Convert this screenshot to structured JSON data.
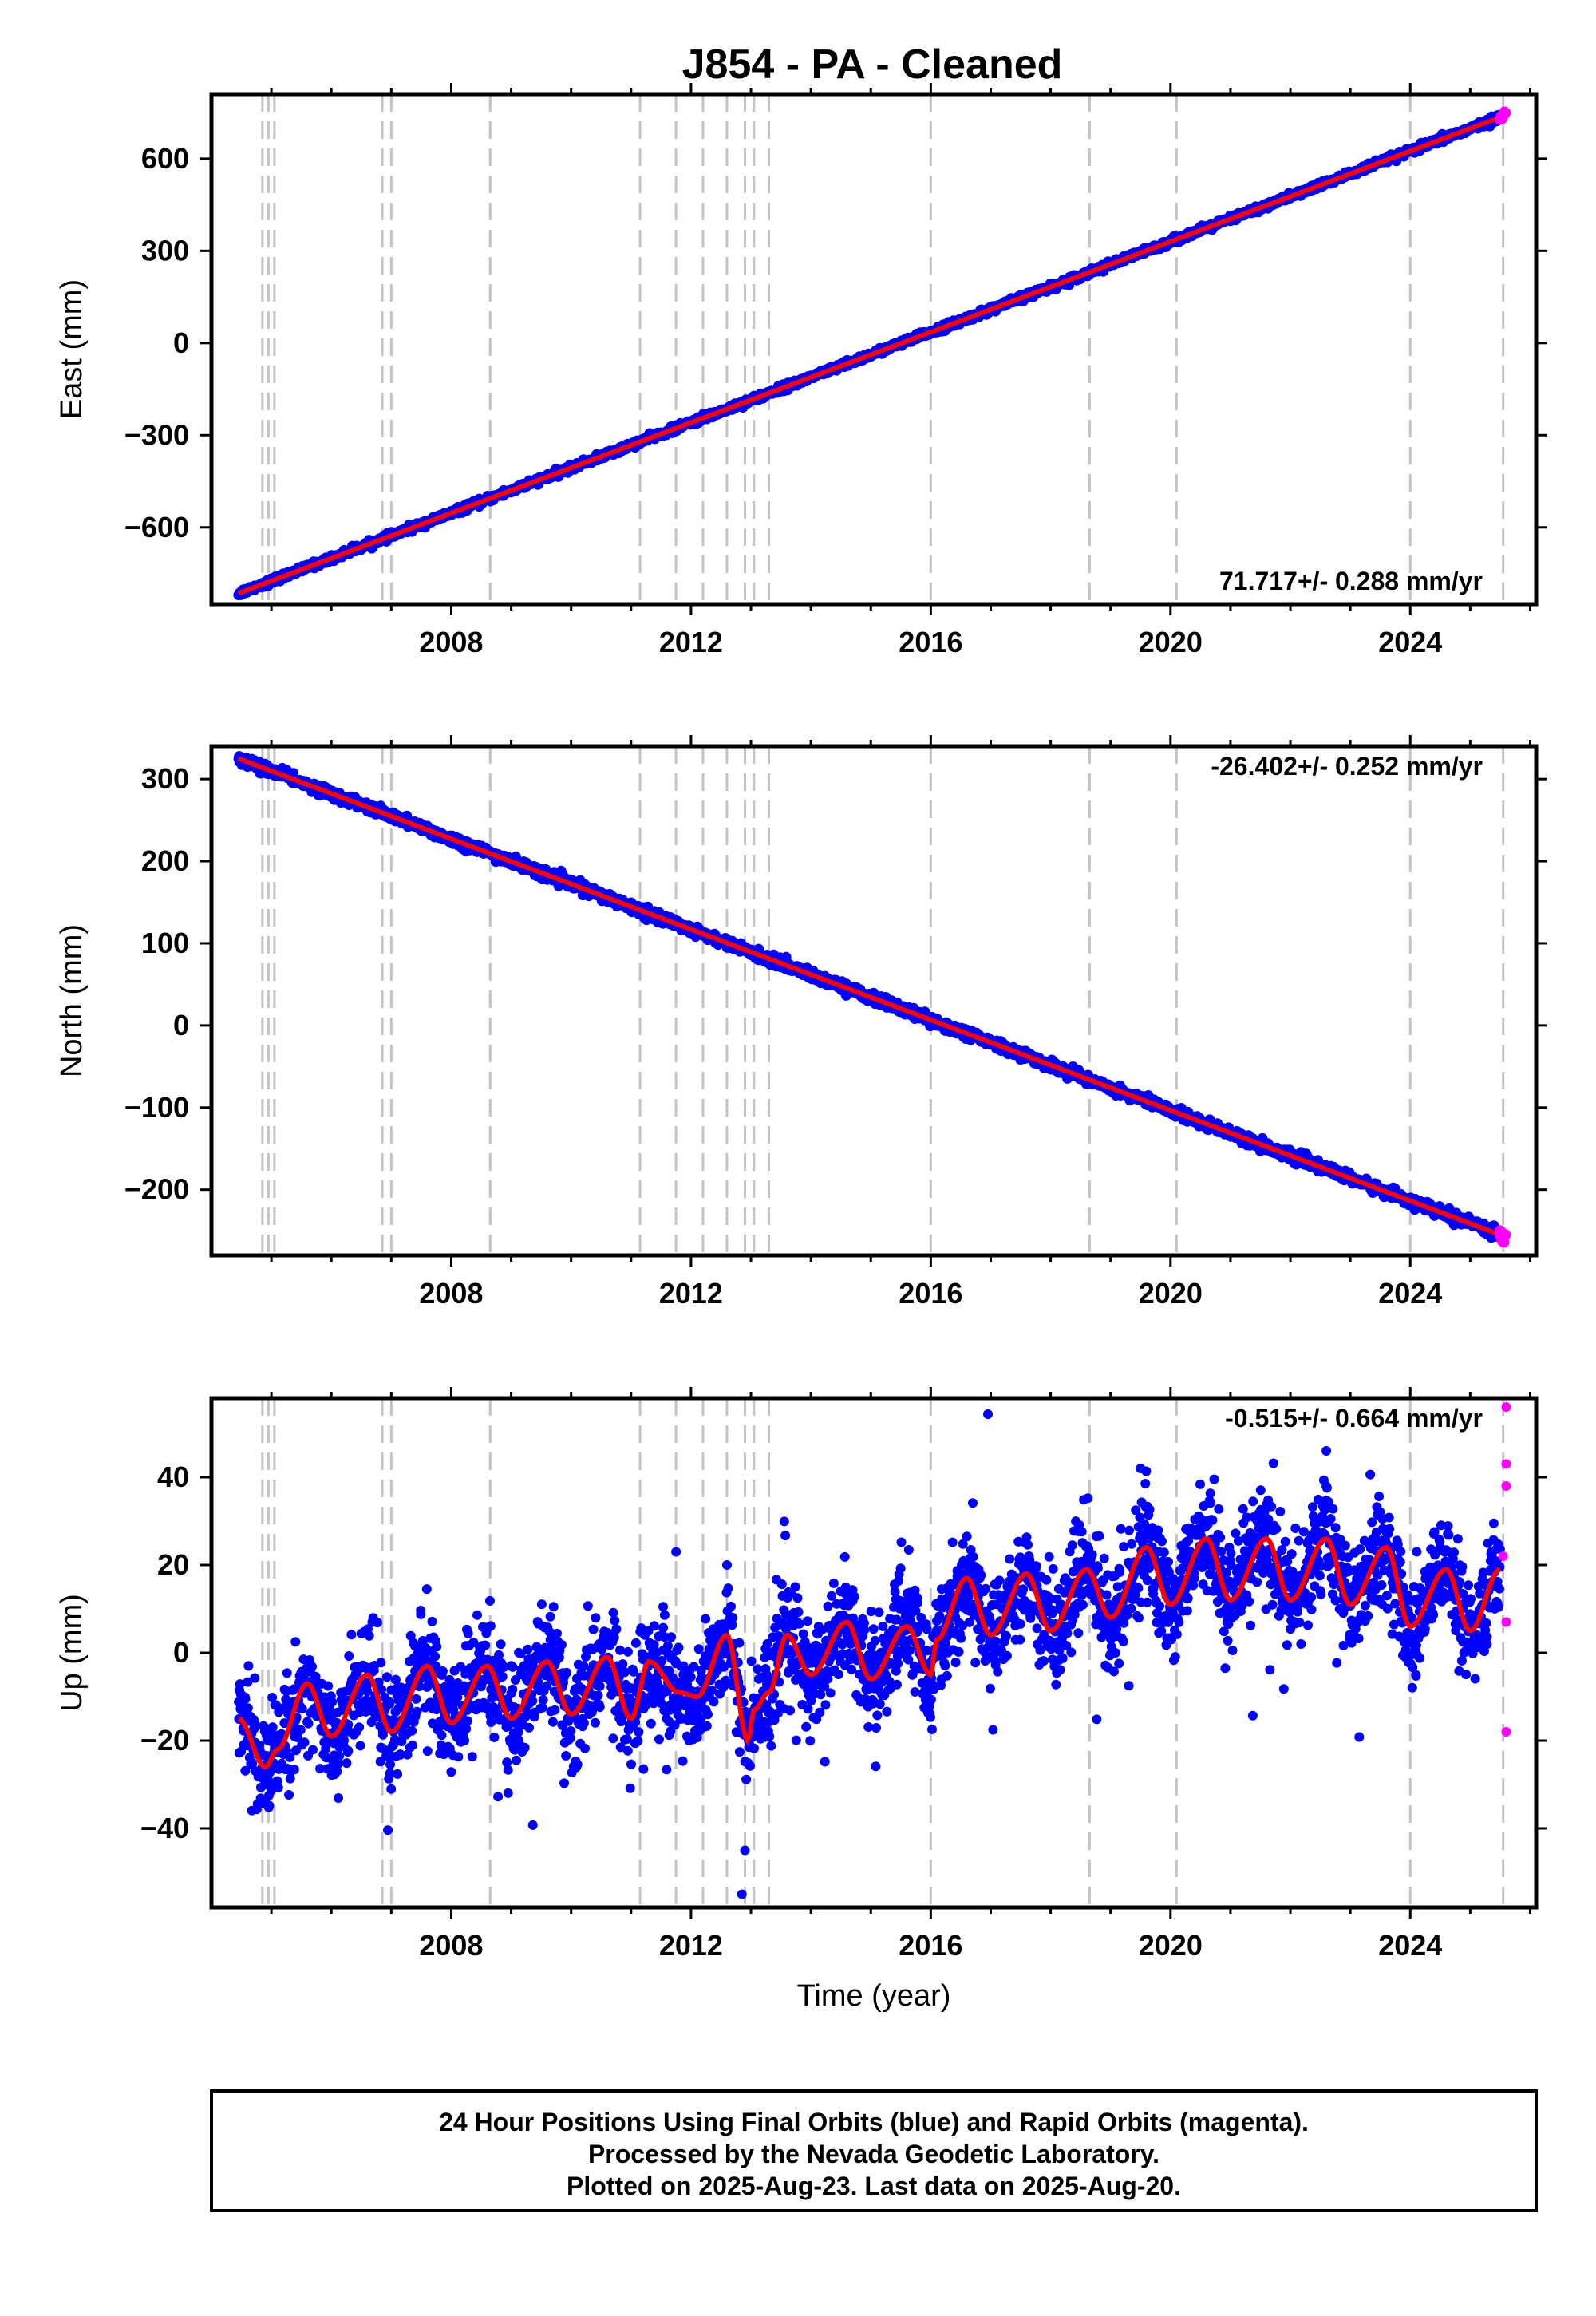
{
  "chart_data": {
    "type": "scatter",
    "title": "J854  - PA - Cleaned",
    "xlabel": "Time (year)",
    "x_range": [
      2004.0,
      2026.1
    ],
    "x_ticks": [
      2008,
      2012,
      2016,
      2020,
      2024
    ],
    "event_lines": [
      2004.85,
      2004.95,
      2005.05,
      2006.85,
      2007.0,
      2008.65,
      2011.15,
      2011.75,
      2012.2,
      2012.6,
      2012.9,
      2013.05,
      2013.3,
      2016.0,
      2018.65,
      2020.1,
      2024.0,
      2025.55
    ],
    "legend": "none",
    "grid": false,
    "panels": [
      {
        "name": "East",
        "ylabel": "East (mm)",
        "ylim": [
          -850,
          810
        ],
        "y_ticks": [
          -600,
          -300,
          0,
          300,
          600
        ],
        "y_tick_labels": [
          "−600",
          "−300",
          "0",
          "300",
          "600"
        ],
        "rate": "71.717+/- 0.288 mm/yr",
        "rate_position": "bottom-right",
        "start": [
          2004.45,
          -815
        ],
        "end": [
          2025.5,
          735
        ],
        "noise_mm": 5
      },
      {
        "name": "North",
        "ylabel": "North (mm)",
        "ylim": [
          -280,
          340
        ],
        "y_ticks": [
          -200,
          -100,
          0,
          100,
          200,
          300
        ],
        "y_tick_labels": [
          "−200",
          "−100",
          "0",
          "100",
          "200",
          "300"
        ],
        "rate": "-26.402+/- 0.252 mm/yr",
        "rate_position": "top-right",
        "start": [
          2004.45,
          325
        ],
        "end": [
          2025.5,
          -255
        ],
        "noise_mm": 3
      },
      {
        "name": "Up",
        "ylabel": "Up (mm)",
        "ylim": [
          -58,
          58
        ],
        "y_ticks": [
          -40,
          -20,
          0,
          20,
          40
        ],
        "y_tick_labels": [
          "−40",
          "−20",
          "0",
          "20",
          "40"
        ],
        "rate": "-0.515+/- 0.664 mm/yr",
        "rate_position": "top-right",
        "model_knots": [
          [
            2004.45,
            -15
          ],
          [
            2004.9,
            -26
          ],
          [
            2005.1,
            -22
          ],
          [
            2005.6,
            -7
          ],
          [
            2006.0,
            -19
          ],
          [
            2006.6,
            -5
          ],
          [
            2007.0,
            -18
          ],
          [
            2007.6,
            -3
          ],
          [
            2008.0,
            -16
          ],
          [
            2008.6,
            -3
          ],
          [
            2009.0,
            -15
          ],
          [
            2009.6,
            -2
          ],
          [
            2010.0,
            -14
          ],
          [
            2010.6,
            -1
          ],
          [
            2011.0,
            -15
          ],
          [
            2011.3,
            -2
          ],
          [
            2011.8,
            -9
          ],
          [
            2012.1,
            -10
          ],
          [
            2012.6,
            4
          ],
          [
            2012.95,
            -20
          ],
          [
            2013.05,
            -13
          ],
          [
            2013.3,
            -9
          ],
          [
            2013.6,
            4
          ],
          [
            2014.0,
            -5
          ],
          [
            2014.6,
            7
          ],
          [
            2015.0,
            -6
          ],
          [
            2015.6,
            6
          ],
          [
            2016.0,
            -5
          ],
          [
            2016.1,
            3
          ],
          [
            2016.6,
            17
          ],
          [
            2017.0,
            4
          ],
          [
            2017.6,
            18
          ],
          [
            2018.0,
            5
          ],
          [
            2018.6,
            19
          ],
          [
            2019.0,
            8
          ],
          [
            2019.6,
            24
          ],
          [
            2020.0,
            11
          ],
          [
            2020.6,
            26
          ],
          [
            2021.0,
            12
          ],
          [
            2021.6,
            26
          ],
          [
            2022.0,
            12
          ],
          [
            2022.6,
            26
          ],
          [
            2023.0,
            11
          ],
          [
            2023.6,
            24
          ],
          [
            2024.0,
            6
          ],
          [
            2024.6,
            19
          ],
          [
            2025.0,
            5
          ],
          [
            2025.5,
            19
          ]
        ],
        "outliers": [
          [
            2012.85,
            -55
          ],
          [
            2012.9,
            -45
          ],
          [
            2011.75,
            23
          ],
          [
            2012.6,
            20
          ],
          [
            2022.6,
            46
          ],
          [
            2019.5,
            42
          ]
        ],
        "rapid_points": [
          [
            2025.6,
            56
          ],
          [
            2025.6,
            43
          ],
          [
            2025.6,
            38
          ],
          [
            2025.55,
            22
          ],
          [
            2025.6,
            7
          ],
          [
            2025.6,
            -18
          ]
        ],
        "noise_mm": 6
      }
    ],
    "colors": {
      "final_orbits": "#0000ff",
      "rapid_orbits": "#ff00ff",
      "model": "#ff0000",
      "event_line": "#c4c4c4",
      "frame": "#000000"
    }
  },
  "footer": {
    "line1": "24 Hour Positions Using Final Orbits (blue) and Rapid Orbits (magenta).",
    "line2": "Processed by the Nevada Geodetic Laboratory.",
    "line3": "Plotted on 2025-Aug-23. Last data on 2025-Aug-20."
  }
}
